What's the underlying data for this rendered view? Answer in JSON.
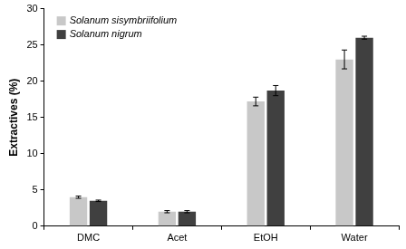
{
  "chart_data": {
    "type": "bar",
    "y_label": "Extractives (%)",
    "categories": [
      "DMC",
      "Acet",
      "EtOH",
      "Water"
    ],
    "series": [
      {
        "name": "Solanum sisymbriifolium",
        "color": "#c8c8c8",
        "values": [
          4.0,
          2.0,
          17.2,
          23.0
        ],
        "errors": [
          0.15,
          0.15,
          0.6,
          1.3
        ]
      },
      {
        "name": "Solanum nigrum",
        "color": "#404040",
        "values": [
          3.5,
          2.0,
          18.7,
          26.0
        ],
        "errors": [
          0.1,
          0.15,
          0.7,
          0.2
        ]
      }
    ],
    "ylim": [
      0,
      30
    ],
    "yticks": [
      0,
      5,
      10,
      15,
      20,
      25,
      30
    ],
    "grid": false,
    "legend": "upper left"
  }
}
